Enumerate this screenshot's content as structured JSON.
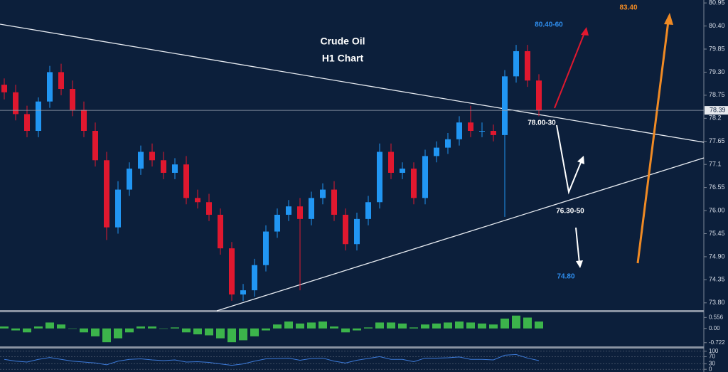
{
  "chart_data": [
    {
      "type": "candlestick",
      "title": "Crude Oil",
      "subtitle": "H1 Chart",
      "up_color": "#2196f3",
      "down_color": "#e0182f",
      "open": [
        79.0,
        78.82,
        78.3,
        77.9,
        78.6,
        79.3,
        78.9,
        78.4,
        77.9,
        77.2,
        75.6,
        76.5,
        77.0,
        77.4,
        77.2,
        76.9,
        77.1,
        76.3,
        76.2,
        75.9,
        75.1,
        74.0,
        74.1,
        74.7,
        75.5,
        75.9,
        76.1,
        75.8,
        76.3,
        76.5,
        75.9,
        75.2,
        75.8,
        76.2,
        77.4,
        76.9,
        77.0,
        76.3,
        77.3,
        77.5,
        77.7,
        78.1,
        77.9,
        77.9,
        77.8,
        79.2,
        79.8,
        79.1
      ],
      "high": [
        79.15,
        79.0,
        78.5,
        78.7,
        79.45,
        79.5,
        79.1,
        78.6,
        78.1,
        77.4,
        76.7,
        77.15,
        77.55,
        77.6,
        77.4,
        77.25,
        77.3,
        76.5,
        76.4,
        76.05,
        75.25,
        74.25,
        74.85,
        75.65,
        76.05,
        76.25,
        76.3,
        76.45,
        76.65,
        76.7,
        76.05,
        75.95,
        76.35,
        77.6,
        77.6,
        77.15,
        77.15,
        77.45,
        77.65,
        77.85,
        78.25,
        78.5,
        78.1,
        78.05,
        79.35,
        79.95,
        79.95,
        79.25
      ],
      "low": [
        78.65,
        78.15,
        77.75,
        77.75,
        78.45,
        78.75,
        78.25,
        77.75,
        77.05,
        75.3,
        75.45,
        76.35,
        76.85,
        77.05,
        76.75,
        76.75,
        76.15,
        76.05,
        75.75,
        74.95,
        73.85,
        73.85,
        73.95,
        74.55,
        75.35,
        75.75,
        74.1,
        75.65,
        76.15,
        75.75,
        75.05,
        75.05,
        75.65,
        76.05,
        76.75,
        76.75,
        76.15,
        76.15,
        77.15,
        77.35,
        77.55,
        77.75,
        77.75,
        77.65,
        75.85,
        79.05,
        78.95,
        78.25
      ],
      "close": [
        78.82,
        78.3,
        77.9,
        78.6,
        79.3,
        78.9,
        78.4,
        77.9,
        77.2,
        75.6,
        76.5,
        77.0,
        77.4,
        77.2,
        76.9,
        77.1,
        76.3,
        76.2,
        75.9,
        75.1,
        74.0,
        74.1,
        74.7,
        75.5,
        75.9,
        76.1,
        75.8,
        76.3,
        76.5,
        75.9,
        75.2,
        75.8,
        76.2,
        77.4,
        76.9,
        77.0,
        76.3,
        77.3,
        77.5,
        77.7,
        78.1,
        77.9,
        77.9,
        77.8,
        79.2,
        79.8,
        79.1,
        78.39
      ],
      "last_price": 78.39,
      "ylim": [
        73.61,
        81.02
      ],
      "yticks": [
        80.95,
        {
          "value": 80.4,
          "label": "80.40"
        },
        79.85,
        {
          "value": 79.3,
          "label": "79.30"
        },
        78.75,
        78.2,
        77.65,
        77.1,
        76.55,
        {
          "value": 76.0,
          "label": "76.00"
        },
        75.45,
        {
          "value": 74.9,
          "label": "74.90"
        },
        74.35,
        {
          "value": 73.8,
          "label": "73.80"
        }
      ],
      "annotations": [
        "80.40-60",
        "83.40",
        "78.00-30",
        "76.30-50",
        "74.80"
      ]
    },
    {
      "type": "bar",
      "color": "#3cb44b",
      "values": [
        0.1,
        -0.1,
        -0.2,
        0.1,
        0.3,
        0.2,
        0,
        -0.2,
        -0.4,
        -0.7,
        -0.5,
        -0.2,
        0.1,
        0.1,
        0,
        0.05,
        -0.2,
        -0.3,
        -0.35,
        -0.5,
        -0.7,
        -0.6,
        -0.4,
        -0.1,
        0.2,
        0.35,
        0.25,
        0.3,
        0.35,
        0.1,
        -0.2,
        -0.1,
        0.05,
        0.3,
        0.3,
        0.25,
        0.05,
        0.2,
        0.25,
        0.3,
        0.35,
        0.3,
        0.25,
        0.2,
        0.5,
        0.65,
        0.55,
        0.35
      ],
      "ylim": [
        -0.91,
        0.82
      ],
      "yticks": [
        0.556,
        {
          "value": 0,
          "label": "0.00"
        },
        -0.722
      ]
    },
    {
      "type": "line",
      "color": "#3d7bd9",
      "values": [
        55,
        45,
        40,
        55,
        65,
        55,
        45,
        40,
        35,
        25,
        45,
        55,
        58,
        52,
        48,
        52,
        40,
        42,
        38,
        30,
        22,
        30,
        45,
        58,
        60,
        62,
        50,
        60,
        62,
        45,
        35,
        50,
        60,
        70,
        55,
        55,
        42,
        62,
        62,
        64,
        68,
        55,
        55,
        52,
        78,
        82,
        62,
        48
      ],
      "ylim": [
        -15,
        115
      ],
      "yticks": [
        100,
        70,
        30,
        0
      ]
    }
  ]
}
